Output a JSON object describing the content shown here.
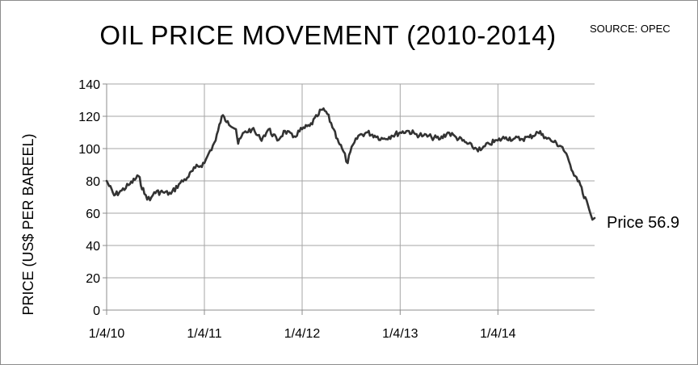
{
  "source": "SOURCE: OPEC",
  "chart_data": {
    "type": "line",
    "title": "OIL PRICE MOVEMENT (2010-2014)",
    "xlabel": "",
    "ylabel": "PRICE (US$ PER BAREEL)",
    "x_tick_labels": [
      "1/4/10",
      "1/4/11",
      "1/4/12",
      "1/4/13",
      "1/4/14"
    ],
    "xlim": [
      "2010-01-04",
      "2014-12-31"
    ],
    "ylim": [
      0,
      140
    ],
    "yticks": [
      0,
      20,
      40,
      60,
      80,
      100,
      120,
      140
    ],
    "grid": true,
    "line_color": "#333333",
    "grid_color": "#a6a6a6",
    "series": [
      {
        "x": [
          "2010-01-04",
          "2010-02-01",
          "2010-03-01",
          "2010-04-01",
          "2010-05-03",
          "2010-05-25",
          "2010-06-15",
          "2010-07-01",
          "2010-08-02",
          "2010-09-01",
          "2010-10-01",
          "2010-11-01",
          "2010-12-01",
          "2011-01-04",
          "2011-01-20",
          "2011-02-15",
          "2011-02-24",
          "2011-03-10",
          "2011-04-01",
          "2011-05-02",
          "2011-05-10",
          "2011-06-01",
          "2011-07-01",
          "2011-08-01",
          "2011-08-10",
          "2011-09-01",
          "2011-10-03",
          "2011-11-01",
          "2011-12-01",
          "2012-01-04",
          "2012-02-01",
          "2012-03-01",
          "2012-03-15",
          "2012-04-02",
          "2012-05-01",
          "2012-05-15",
          "2012-06-01",
          "2012-06-22",
          "2012-07-02",
          "2012-08-01",
          "2012-09-04",
          "2012-10-01",
          "2012-11-01",
          "2012-12-03",
          "2013-01-04",
          "2013-02-01",
          "2013-03-01",
          "2013-04-01",
          "2013-05-01",
          "2013-06-03",
          "2013-07-01",
          "2013-08-01",
          "2013-09-03",
          "2013-10-01",
          "2013-11-01",
          "2013-12-02",
          "2014-01-04",
          "2014-02-03",
          "2014-03-03",
          "2014-04-01",
          "2014-05-01",
          "2014-06-02",
          "2014-06-20",
          "2014-07-01",
          "2014-08-01",
          "2014-09-02",
          "2014-10-01",
          "2014-10-20",
          "2014-11-03",
          "2014-11-17",
          "2014-12-01",
          "2014-12-15",
          "2014-12-23",
          "2014-12-31"
        ],
        "values": [
          80,
          71,
          74,
          78,
          83,
          72,
          68,
          73,
          73,
          72,
          78,
          82,
          88,
          91,
          97,
          105,
          111,
          120,
          117,
          112,
          103,
          110,
          112,
          106,
          107,
          112,
          105,
          111,
          107,
          112,
          114,
          120,
          124,
          123,
          112,
          106,
          100,
          91,
          98,
          108,
          110,
          108,
          106,
          108,
          110,
          111,
          109,
          108,
          107,
          106,
          110,
          107,
          104,
          101,
          99,
          103,
          105,
          107,
          106,
          106,
          107,
          110,
          109,
          107,
          104,
          101,
          90,
          83,
          80,
          72,
          68,
          60,
          56,
          57
        ]
      }
    ],
    "annotations": [
      {
        "text": "Price 56.9",
        "x": "2014-12-31",
        "y": 57
      }
    ]
  }
}
